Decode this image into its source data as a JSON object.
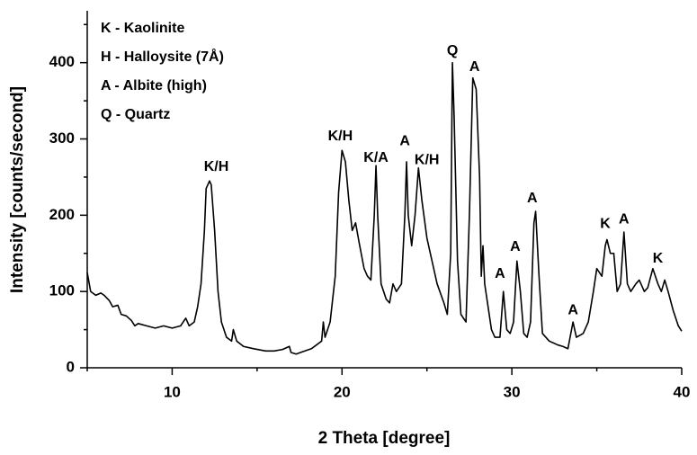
{
  "chart_data": {
    "type": "line",
    "xlabel": "2 Theta [degree]",
    "ylabel": "Intensity [counts/second]",
    "xlim": [
      5,
      40
    ],
    "ylim": [
      0,
      468
    ],
    "xticks": [
      10,
      20,
      30,
      40
    ],
    "yticks": [
      0,
      100,
      200,
      300,
      400
    ],
    "xminorticks": [
      5,
      15,
      25,
      35
    ],
    "yminorticks": [
      50,
      150,
      250,
      350,
      450
    ],
    "color": "#000000",
    "notes": [
      "K - Kaolinite",
      "H - Halloysite (7Å)",
      "A - Albite (high)",
      "Q - Quartz"
    ],
    "annotations": [
      {
        "text": "K/H",
        "x": 12.6,
        "y": 263
      },
      {
        "text": "K/H",
        "x": 19.9,
        "y": 303
      },
      {
        "text": "K/A",
        "x": 22.0,
        "y": 275
      },
      {
        "text": "A",
        "x": 23.7,
        "y": 297
      },
      {
        "text": "K/H",
        "x": 25.0,
        "y": 272
      },
      {
        "text": "Q",
        "x": 26.5,
        "y": 415
      },
      {
        "text": "A",
        "x": 27.8,
        "y": 394
      },
      {
        "text": "A",
        "x": 29.3,
        "y": 123
      },
      {
        "text": "A",
        "x": 30.2,
        "y": 158
      },
      {
        "text": "A",
        "x": 31.2,
        "y": 222
      },
      {
        "text": "A",
        "x": 33.6,
        "y": 75
      },
      {
        "text": "K",
        "x": 35.5,
        "y": 188
      },
      {
        "text": "A",
        "x": 36.6,
        "y": 194
      },
      {
        "text": "K",
        "x": 38.6,
        "y": 143
      }
    ],
    "x": [
      5.0,
      5.2,
      5.5,
      5.8,
      6.0,
      6.3,
      6.5,
      6.8,
      7.0,
      7.3,
      7.6,
      7.8,
      8.0,
      8.5,
      9.0,
      9.5,
      10.0,
      10.5,
      10.8,
      11.0,
      11.3,
      11.5,
      11.7,
      11.9,
      12.0,
      12.2,
      12.3,
      12.5,
      12.7,
      12.9,
      13.2,
      13.5,
      13.6,
      13.8,
      14.2,
      14.8,
      15.5,
      16.0,
      16.5,
      16.9,
      17.0,
      17.3,
      17.8,
      18.2,
      18.5,
      18.8,
      18.9,
      19.0,
      19.3,
      19.6,
      19.8,
      20.0,
      20.2,
      20.4,
      20.6,
      20.8,
      21.0,
      21.3,
      21.5,
      21.7,
      21.9,
      22.0,
      22.1,
      22.3,
      22.6,
      22.8,
      23.0,
      23.2,
      23.5,
      23.7,
      23.8,
      23.9,
      24.1,
      24.3,
      24.5,
      24.7,
      25.0,
      25.3,
      25.6,
      26.0,
      26.2,
      26.4,
      26.5,
      26.6,
      26.8,
      27.0,
      27.3,
      27.5,
      27.7,
      27.9,
      28.1,
      28.2,
      28.3,
      28.4,
      28.6,
      28.8,
      29.0,
      29.3,
      29.5,
      29.7,
      29.9,
      30.1,
      30.3,
      30.5,
      30.7,
      30.9,
      31.1,
      31.3,
      31.4,
      31.6,
      31.8,
      32.2,
      32.7,
      33.0,
      33.3,
      33.6,
      33.8,
      34.2,
      34.5,
      34.8,
      35.0,
      35.3,
      35.5,
      35.6,
      35.8,
      36.0,
      36.2,
      36.4,
      36.6,
      36.8,
      37.0,
      37.3,
      37.5,
      37.8,
      38.0,
      38.3,
      38.6,
      38.8,
      39.0,
      39.2,
      39.5,
      39.8,
      40.0
    ],
    "series": [
      {
        "color": "#000000",
        "values": [
          125,
          100,
          95,
          98,
          95,
          88,
          80,
          82,
          70,
          68,
          62,
          55,
          58,
          55,
          52,
          55,
          52,
          55,
          65,
          55,
          60,
          80,
          110,
          180,
          235,
          245,
          240,
          180,
          100,
          60,
          40,
          35,
          50,
          35,
          28,
          25,
          22,
          22,
          24,
          28,
          20,
          18,
          22,
          25,
          30,
          35,
          60,
          40,
          60,
          120,
          230,
          285,
          270,
          220,
          180,
          190,
          165,
          130,
          120,
          115,
          200,
          265,
          200,
          110,
          90,
          85,
          110,
          100,
          110,
          200,
          270,
          200,
          160,
          200,
          262,
          220,
          170,
          140,
          110,
          85,
          70,
          150,
          400,
          330,
          140,
          70,
          60,
          200,
          380,
          365,
          250,
          120,
          160,
          110,
          80,
          50,
          40,
          40,
          100,
          50,
          45,
          60,
          140,
          100,
          45,
          40,
          60,
          190,
          205,
          120,
          45,
          35,
          30,
          28,
          25,
          60,
          40,
          45,
          60,
          100,
          130,
          120,
          160,
          168,
          150,
          150,
          100,
          110,
          178,
          110,
          100,
          110,
          115,
          100,
          105,
          130,
          110,
          100,
          115,
          100,
          75,
          55,
          48
        ]
      }
    ]
  }
}
